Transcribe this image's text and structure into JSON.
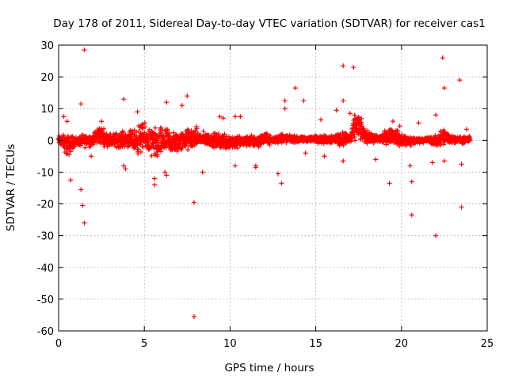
{
  "chart_data": {
    "type": "scatter",
    "title": "Day 178 of 2011, Sidereal Day-to-day VTEC variation (SDTVAR) for receiver cas1",
    "xlabel": "GPS time / hours",
    "ylabel": "SDTVAR / TECUs",
    "xlim": [
      0,
      25
    ],
    "ylim": [
      -60,
      30
    ],
    "xticks": [
      0,
      5,
      10,
      15,
      20,
      25
    ],
    "yticks": [
      30,
      20,
      10,
      0,
      -10,
      -20,
      -30,
      -40,
      -50,
      -60
    ],
    "xtick_labels": [
      "0",
      "5",
      "10",
      "15",
      "20",
      "25"
    ],
    "ytick_labels": [
      "30",
      "20",
      "10",
      "0",
      "-10",
      "-20",
      "-30",
      "-40",
      "-50",
      "-60"
    ],
    "grid": true,
    "marker": "+",
    "color": "#ff0000",
    "band": [
      [
        0.0,
        2.0,
        -2.0
      ],
      [
        0.3,
        2.5,
        -3.5
      ],
      [
        0.5,
        3.0,
        -7.0
      ],
      [
        0.8,
        2.2,
        -3.5
      ],
      [
        1.0,
        1.5,
        -2.0
      ],
      [
        1.3,
        2.0,
        -2.5
      ],
      [
        1.6,
        3.0,
        -3.0
      ],
      [
        2.0,
        2.5,
        -2.0
      ],
      [
        2.4,
        6.5,
        -2.5
      ],
      [
        2.8,
        3.0,
        -2.5
      ],
      [
        3.2,
        3.0,
        -3.0
      ],
      [
        3.6,
        3.5,
        -3.0
      ],
      [
        4.0,
        4.0,
        -3.0
      ],
      [
        4.3,
        4.0,
        -4.0
      ],
      [
        4.6,
        6.0,
        -6.0
      ],
      [
        4.9,
        7.0,
        -5.0
      ],
      [
        5.2,
        5.5,
        -5.5
      ],
      [
        5.5,
        6.0,
        -8.0
      ],
      [
        5.8,
        5.0,
        -8.0
      ],
      [
        6.1,
        6.0,
        -6.0
      ],
      [
        6.4,
        5.0,
        -5.5
      ],
      [
        6.7,
        4.0,
        -6.0
      ],
      [
        7.0,
        4.0,
        -5.0
      ],
      [
        7.3,
        4.0,
        -4.0
      ],
      [
        7.6,
        5.0,
        -4.5
      ],
      [
        8.0,
        5.0,
        -3.0
      ],
      [
        8.3,
        3.5,
        -2.5
      ],
      [
        8.7,
        3.0,
        -2.5
      ],
      [
        9.0,
        3.0,
        -3.0
      ],
      [
        9.4,
        3.0,
        -3.5
      ],
      [
        9.8,
        3.5,
        -4.0
      ],
      [
        10.2,
        2.5,
        -3.5
      ],
      [
        10.6,
        2.0,
        -3.0
      ],
      [
        11.0,
        2.0,
        -2.5
      ],
      [
        11.5,
        2.5,
        -3.0
      ],
      [
        12.0,
        3.0,
        -2.0
      ],
      [
        12.5,
        1.5,
        -1.5
      ],
      [
        13.0,
        3.0,
        -1.5
      ],
      [
        13.5,
        2.0,
        -1.0
      ],
      [
        14.0,
        1.5,
        -1.0
      ],
      [
        14.5,
        1.5,
        -0.8
      ],
      [
        15.0,
        2.0,
        -1.0
      ],
      [
        15.5,
        2.0,
        -1.5
      ],
      [
        16.0,
        2.5,
        -1.5
      ],
      [
        16.5,
        3.5,
        -2.5
      ],
      [
        17.0,
        3.0,
        -2.0
      ],
      [
        17.4,
        12.0,
        -1.5
      ],
      [
        17.8,
        5.0,
        -1.5
      ],
      [
        18.2,
        2.5,
        -1.5
      ],
      [
        18.6,
        2.5,
        -1.5
      ],
      [
        19.0,
        3.5,
        -2.0
      ],
      [
        19.5,
        5.0,
        -1.5
      ],
      [
        20.0,
        3.0,
        -3.0
      ],
      [
        20.5,
        2.0,
        -2.5
      ],
      [
        21.0,
        1.0,
        -1.0
      ],
      [
        21.5,
        1.5,
        -1.0
      ],
      [
        22.0,
        2.0,
        -2.5
      ],
      [
        22.4,
        5.0,
        -3.0
      ],
      [
        22.8,
        2.5,
        -1.5
      ],
      [
        23.2,
        1.5,
        -1.0
      ],
      [
        23.6,
        1.5,
        -1.5
      ],
      [
        24.0,
        1.5,
        -1.0
      ]
    ],
    "outliers": [
      [
        0.3,
        7.5
      ],
      [
        0.5,
        6.0
      ],
      [
        0.7,
        -12.5
      ],
      [
        1.3,
        11.5
      ],
      [
        1.3,
        -15.5
      ],
      [
        1.4,
        -20.5
      ],
      [
        1.5,
        28.5
      ],
      [
        1.5,
        -26.0
      ],
      [
        1.9,
        -5.0
      ],
      [
        2.5,
        6.0
      ],
      [
        3.8,
        13.0
      ],
      [
        3.8,
        -8.0
      ],
      [
        3.9,
        -9.0
      ],
      [
        4.6,
        9.0
      ],
      [
        5.6,
        -12.0
      ],
      [
        5.6,
        -14.0
      ],
      [
        6.2,
        -10.0
      ],
      [
        6.3,
        12.0
      ],
      [
        6.3,
        -11.0
      ],
      [
        7.5,
        14.0
      ],
      [
        7.2,
        11.0
      ],
      [
        7.9,
        -19.5
      ],
      [
        7.9,
        -55.5
      ],
      [
        8.4,
        -10.0
      ],
      [
        9.4,
        7.5
      ],
      [
        9.6,
        7.0
      ],
      [
        10.3,
        7.5
      ],
      [
        10.6,
        7.5
      ],
      [
        10.3,
        -8.0
      ],
      [
        11.5,
        -8.0
      ],
      [
        11.5,
        -8.5
      ],
      [
        12.8,
        -10.5
      ],
      [
        13.0,
        -13.5
      ],
      [
        13.2,
        12.5
      ],
      [
        13.2,
        10.0
      ],
      [
        13.8,
        16.5
      ],
      [
        14.3,
        12.5
      ],
      [
        14.4,
        -4.0
      ],
      [
        15.3,
        6.5
      ],
      [
        15.5,
        -5.0
      ],
      [
        16.2,
        9.5
      ],
      [
        16.6,
        23.5
      ],
      [
        16.6,
        12.5
      ],
      [
        16.6,
        -6.5
      ],
      [
        17.2,
        23.0
      ],
      [
        17.0,
        8.5
      ],
      [
        18.5,
        -6.0
      ],
      [
        19.3,
        -13.5
      ],
      [
        19.5,
        6.0
      ],
      [
        19.9,
        4.5
      ],
      [
        20.5,
        -8.0
      ],
      [
        20.6,
        -13.0
      ],
      [
        20.6,
        -23.5
      ],
      [
        21.0,
        5.5
      ],
      [
        21.8,
        -7.0
      ],
      [
        22.0,
        -30.0
      ],
      [
        22.0,
        8.0
      ],
      [
        22.4,
        26.0
      ],
      [
        22.5,
        16.5
      ],
      [
        22.5,
        -6.5
      ],
      [
        23.4,
        19.0
      ],
      [
        23.5,
        -7.5
      ],
      [
        23.5,
        -21.0
      ],
      [
        23.8,
        3.5
      ]
    ]
  }
}
